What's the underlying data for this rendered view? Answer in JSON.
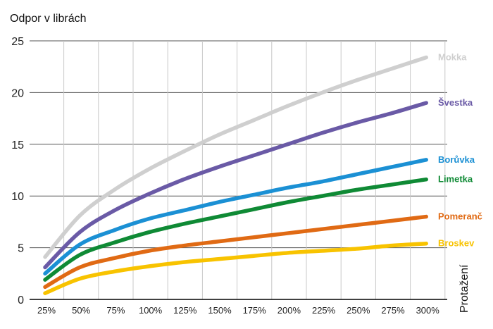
{
  "chart_data": {
    "type": "line",
    "ylabel": "Odpor v librách",
    "xlabel": "Protažení",
    "ylim": [
      0,
      25
    ],
    "yticks": [
      "0",
      "5",
      "10",
      "15",
      "20",
      "25"
    ],
    "xticks": [
      "25%",
      "50%",
      "75%",
      "100%",
      "125%",
      "150%",
      "175%",
      "200%",
      "225%",
      "250%",
      "275%",
      "300%"
    ],
    "xlim": [
      25,
      300
    ],
    "grid": true,
    "x": [
      25,
      50,
      75,
      100,
      125,
      150,
      175,
      200,
      225,
      250,
      275,
      300
    ],
    "series": [
      {
        "name": "Mokka",
        "color": "#cfcfcf",
        "values": [
          4.1,
          8.1,
          10.6,
          12.6,
          14.3,
          15.9,
          17.3,
          18.7,
          20.0,
          21.2,
          22.3,
          23.4
        ]
      },
      {
        "name": "Švestka",
        "color": "#6a5aa6",
        "values": [
          3.1,
          6.5,
          8.6,
          10.2,
          11.6,
          12.8,
          13.9,
          15.0,
          16.1,
          17.1,
          18.0,
          19.0
        ]
      },
      {
        "name": "Borůvka",
        "color": "#1b90d4",
        "values": [
          2.5,
          5.3,
          6.7,
          7.8,
          8.6,
          9.4,
          10.1,
          10.8,
          11.4,
          12.1,
          12.8,
          13.5
        ]
      },
      {
        "name": "Limetka",
        "color": "#0f8a35",
        "values": [
          1.9,
          4.3,
          5.5,
          6.5,
          7.3,
          8.0,
          8.7,
          9.4,
          10.0,
          10.6,
          11.1,
          11.6
        ]
      },
      {
        "name": "Pomeranč",
        "color": "#e06a14",
        "values": [
          1.2,
          3.1,
          4.0,
          4.7,
          5.2,
          5.6,
          6.0,
          6.4,
          6.8,
          7.2,
          7.6,
          8.0
        ]
      },
      {
        "name": "Broskev",
        "color": "#f8c300",
        "values": [
          0.6,
          2.0,
          2.7,
          3.2,
          3.6,
          3.9,
          4.2,
          4.5,
          4.7,
          4.9,
          5.2,
          5.4
        ]
      }
    ]
  }
}
